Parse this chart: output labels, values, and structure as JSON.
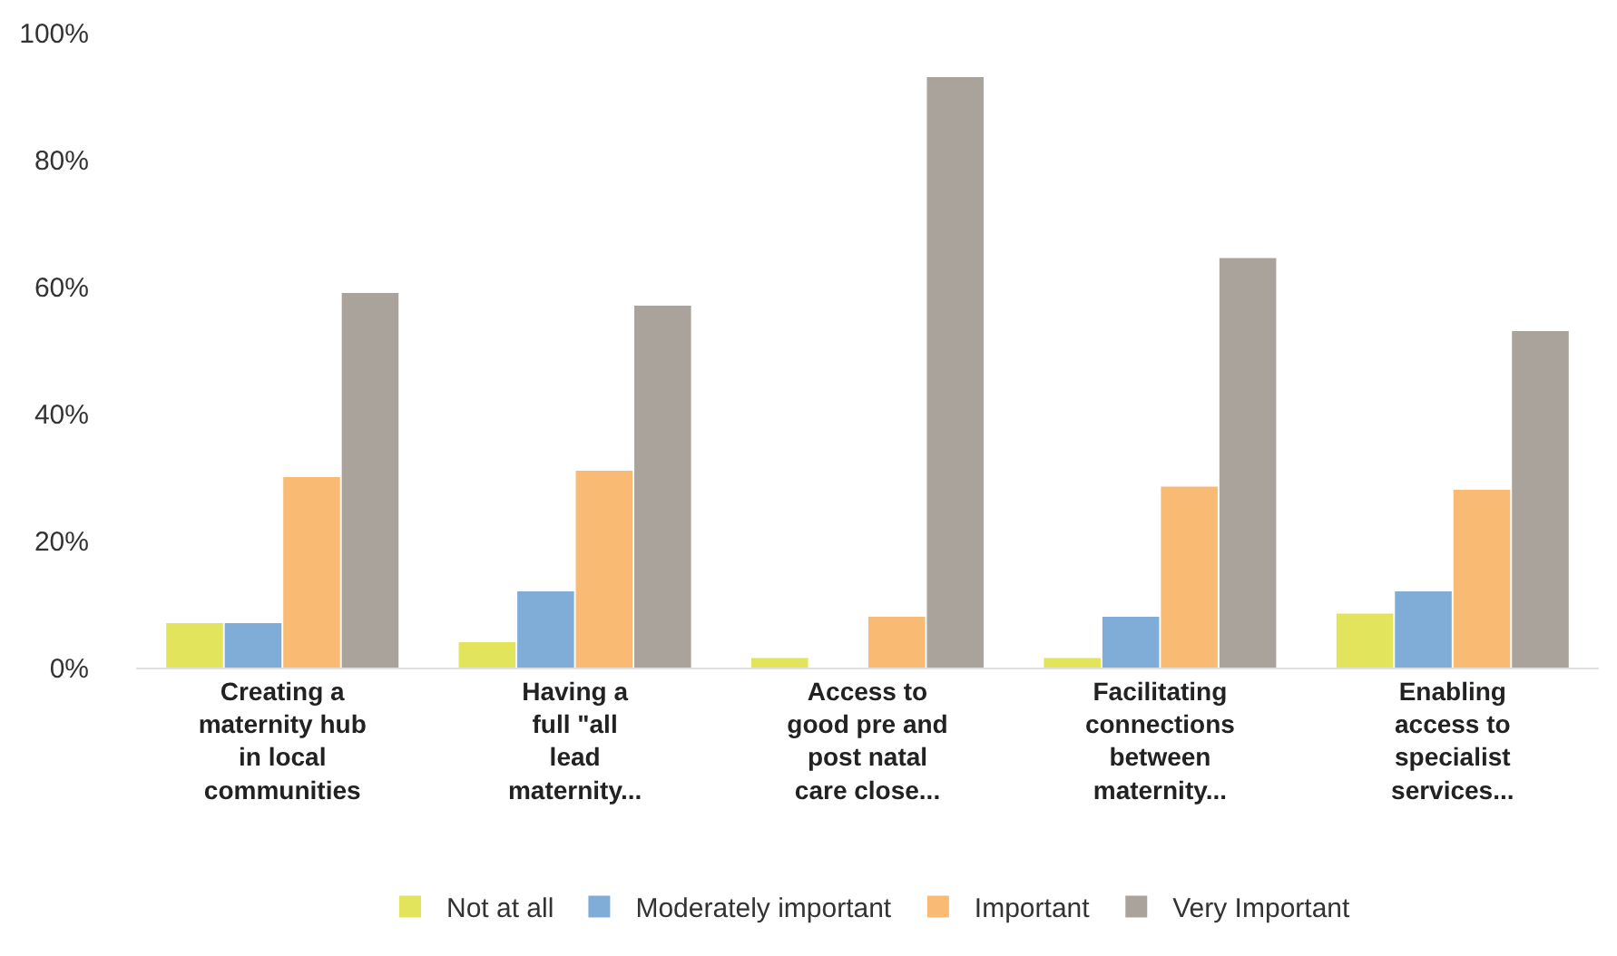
{
  "chart_data": {
    "type": "bar",
    "categories": [
      "Creating a\nmaternity hub\nin local\ncommunities",
      "Having a\nfull \"all\nlead\nmaternity...",
      "Access to\ngood pre and\npost natal\ncare close...",
      "Facilitating\nconnections\nbetween\nmaternity...",
      "Enabling\naccess to\nspecialist\nservices..."
    ],
    "series": [
      {
        "name": "Not at all",
        "color": "#e2e45c",
        "values": [
          7,
          4,
          1.5,
          1.5,
          8.5
        ]
      },
      {
        "name": "Moderately important",
        "color": "#7fadd8",
        "values": [
          7,
          12,
          0,
          8,
          12
        ]
      },
      {
        "name": "Important",
        "color": "#f9bb73",
        "values": [
          30,
          31,
          8,
          28.5,
          28
        ]
      },
      {
        "name": "Very Important",
        "color": "#aaa39c",
        "values": [
          59,
          57,
          93,
          64.5,
          53
        ]
      }
    ],
    "ylim": [
      0,
      100
    ],
    "yticks": [
      {
        "value": 0,
        "label": "0%"
      },
      {
        "value": 20,
        "label": "20%"
      },
      {
        "value": 40,
        "label": "40%"
      },
      {
        "value": 60,
        "label": "60%"
      },
      {
        "value": 80,
        "label": "80%"
      },
      {
        "value": 100,
        "label": "100%"
      }
    ],
    "legend": "bottom"
  }
}
